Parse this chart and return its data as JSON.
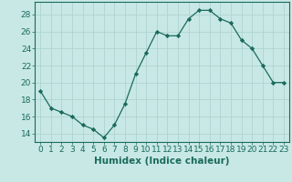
{
  "x": [
    0,
    1,
    2,
    3,
    4,
    5,
    6,
    7,
    8,
    9,
    10,
    11,
    12,
    13,
    14,
    15,
    16,
    17,
    18,
    19,
    20,
    21,
    22,
    23
  ],
  "y": [
    19.0,
    17.0,
    16.5,
    16.0,
    15.0,
    14.5,
    13.5,
    15.0,
    17.5,
    21.0,
    23.5,
    26.0,
    25.5,
    25.5,
    27.5,
    28.5,
    28.5,
    27.5,
    27.0,
    25.0,
    24.0,
    22.0,
    20.0,
    20.0
  ],
  "line_color": "#1a6b5a",
  "marker_color": "#1a6b5a",
  "bg_color": "#c8e8e5",
  "grid_color": "#aed4d0",
  "xlabel": "Humidex (Indice chaleur)",
  "ylim": [
    13,
    29.5
  ],
  "xlim": [
    -0.5,
    23.5
  ],
  "yticks": [
    14,
    16,
    18,
    20,
    22,
    24,
    26,
    28
  ],
  "xtick_labels": [
    "0",
    "1",
    "2",
    "3",
    "4",
    "5",
    "6",
    "7",
    "8",
    "9",
    "10",
    "11",
    "12",
    "13",
    "14",
    "15",
    "16",
    "17",
    "18",
    "19",
    "20",
    "21",
    "22",
    "23"
  ],
  "tick_color": "#1a6b5a",
  "label_fontsize": 7.5,
  "tick_fontsize": 6.5
}
